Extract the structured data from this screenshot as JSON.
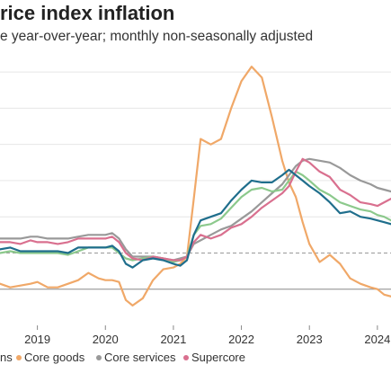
{
  "chart_data": {
    "type": "line",
    "title": "rice index inflation",
    "subtitle": "e year-over-year; monthly non-seasonally adjusted",
    "xlabel": "",
    "ylabel": "",
    "x_ticks": [
      "2019",
      "2020",
      "2021",
      "2022",
      "2023",
      "2024"
    ],
    "xlim": [
      2018.45,
      2024.2
    ],
    "ylim": [
      -2.0,
      13.0
    ],
    "reference_lines": [
      {
        "value": 2,
        "style": "dashed",
        "color": "#999999"
      },
      {
        "value": 0,
        "style": "solid",
        "color": "#888888"
      }
    ],
    "legend": {
      "placement": "bottom",
      "entries": [
        "ns",
        "Core goods",
        "Core services",
        "Supercore"
      ]
    },
    "series": [
      {
        "name": "ns",
        "color": "#1f6e8c",
        "x": [
          2018.45,
          2018.6,
          2018.75,
          2018.9,
          2019.0,
          2019.15,
          2019.3,
          2019.45,
          2019.6,
          2019.75,
          2019.9,
          2020.0,
          2020.1,
          2020.2,
          2020.3,
          2020.4,
          2020.55,
          2020.7,
          2020.85,
          2021.0,
          2021.1,
          2021.2,
          2021.3,
          2021.4,
          2021.55,
          2021.7,
          2021.85,
          2022.0,
          2022.15,
          2022.3,
          2022.45,
          2022.6,
          2022.7,
          2022.8,
          2022.9,
          2023.0,
          2023.15,
          2023.3,
          2023.45,
          2023.6,
          2023.75,
          2023.9,
          2024.0,
          2024.1,
          2024.2
        ],
        "y": [
          2.2,
          2.3,
          2.1,
          2.1,
          2.1,
          2.1,
          2.1,
          2.0,
          2.3,
          2.3,
          2.3,
          2.3,
          2.4,
          2.1,
          1.4,
          1.2,
          1.6,
          1.7,
          1.6,
          1.4,
          1.3,
          1.6,
          3.0,
          3.8,
          4.0,
          4.2,
          4.9,
          5.5,
          6.0,
          5.9,
          5.9,
          6.3,
          6.6,
          6.3,
          6.0,
          5.7,
          5.3,
          4.8,
          4.2,
          4.3,
          4.0,
          3.9,
          3.8,
          3.7,
          3.6
        ]
      },
      {
        "name": "Core goods",
        "color": "#f0a868",
        "x": [
          2018.45,
          2018.6,
          2018.75,
          2018.9,
          2019.0,
          2019.15,
          2019.3,
          2019.45,
          2019.6,
          2019.75,
          2019.9,
          2020.0,
          2020.1,
          2020.2,
          2020.3,
          2020.4,
          2020.55,
          2020.7,
          2020.85,
          2021.0,
          2021.1,
          2021.2,
          2021.3,
          2021.4,
          2021.55,
          2021.7,
          2021.85,
          2022.0,
          2022.15,
          2022.3,
          2022.45,
          2022.6,
          2022.7,
          2022.8,
          2022.9,
          2023.0,
          2023.15,
          2023.3,
          2023.45,
          2023.6,
          2023.75,
          2023.9,
          2024.0,
          2024.1,
          2024.2
        ],
        "y": [
          0.3,
          0.1,
          0.2,
          0.3,
          0.4,
          0.1,
          0.1,
          0.3,
          0.5,
          0.9,
          0.6,
          0.5,
          0.5,
          0.4,
          -0.6,
          -0.9,
          -0.5,
          0.5,
          1.1,
          1.2,
          1.4,
          1.8,
          5.0,
          8.3,
          8.0,
          8.3,
          10.0,
          11.5,
          12.3,
          11.7,
          9.5,
          7.1,
          5.9,
          5.1,
          3.7,
          2.5,
          1.5,
          1.9,
          1.4,
          0.6,
          0.3,
          0.1,
          0.0,
          -0.3,
          -0.4
        ]
      },
      {
        "name": "Core services",
        "color": "#999999",
        "x": [
          2018.45,
          2018.6,
          2018.75,
          2018.9,
          2019.0,
          2019.15,
          2019.3,
          2019.45,
          2019.6,
          2019.75,
          2019.9,
          2020.0,
          2020.1,
          2020.2,
          2020.3,
          2020.4,
          2020.55,
          2020.7,
          2020.85,
          2021.0,
          2021.1,
          2021.2,
          2021.3,
          2021.4,
          2021.55,
          2021.7,
          2021.85,
          2022.0,
          2022.15,
          2022.3,
          2022.45,
          2022.6,
          2022.7,
          2022.8,
          2022.9,
          2023.0,
          2023.15,
          2023.3,
          2023.45,
          2023.6,
          2023.75,
          2023.9,
          2024.0,
          2024.1,
          2024.2
        ],
        "y": [
          2.8,
          2.8,
          2.8,
          2.9,
          2.9,
          2.8,
          2.8,
          2.8,
          2.9,
          3.0,
          3.0,
          3.0,
          3.1,
          2.8,
          2.2,
          1.8,
          1.8,
          1.8,
          1.7,
          1.6,
          1.7,
          1.8,
          2.5,
          2.7,
          3.0,
          3.3,
          3.5,
          3.9,
          4.3,
          4.8,
          5.3,
          5.8,
          6.3,
          6.8,
          7.1,
          7.2,
          7.1,
          7.0,
          6.7,
          6.3,
          6.0,
          5.8,
          5.6,
          5.5,
          5.4
        ]
      },
      {
        "name": "Supercore",
        "color": "#d9708f",
        "x": [
          2018.45,
          2018.6,
          2018.75,
          2018.9,
          2019.0,
          2019.15,
          2019.3,
          2019.45,
          2019.6,
          2019.75,
          2019.9,
          2020.0,
          2020.1,
          2020.2,
          2020.3,
          2020.4,
          2020.55,
          2020.7,
          2020.85,
          2021.0,
          2021.1,
          2021.2,
          2021.3,
          2021.4,
          2021.55,
          2021.7,
          2021.85,
          2022.0,
          2022.15,
          2022.3,
          2022.45,
          2022.6,
          2022.7,
          2022.8,
          2022.9,
          2023.0,
          2023.15,
          2023.3,
          2023.45,
          2023.6,
          2023.75,
          2023.9,
          2024.0,
          2024.1,
          2024.2
        ],
        "y": [
          2.6,
          2.6,
          2.5,
          2.7,
          2.6,
          2.6,
          2.5,
          2.6,
          2.8,
          2.8,
          2.8,
          2.8,
          2.9,
          2.6,
          2.0,
          1.7,
          1.6,
          1.8,
          1.7,
          1.6,
          1.6,
          1.8,
          2.6,
          3.0,
          2.8,
          3.0,
          3.4,
          3.6,
          4.0,
          4.5,
          4.9,
          5.3,
          5.7,
          6.5,
          7.2,
          7.0,
          6.5,
          6.2,
          5.5,
          5.2,
          4.8,
          4.7,
          4.6,
          4.8,
          5.0
        ]
      },
      {
        "name": "",
        "color": "#8cc98c",
        "x": [
          2018.45,
          2018.6,
          2018.75,
          2018.9,
          2019.0,
          2019.15,
          2019.3,
          2019.45,
          2019.6,
          2019.75,
          2019.9,
          2020.0,
          2020.1,
          2020.2,
          2020.3,
          2020.4,
          2020.55,
          2020.7,
          2020.85,
          2021.0,
          2021.1,
          2021.2,
          2021.3,
          2021.4,
          2021.55,
          2021.7,
          2021.85,
          2022.0,
          2022.15,
          2022.3,
          2022.45,
          2022.6,
          2022.7,
          2022.8,
          2022.9,
          2023.0,
          2023.15,
          2023.3,
          2023.45,
          2023.6,
          2023.75,
          2023.9,
          2024.0,
          2024.1,
          2024.2
        ],
        "y": [
          2.0,
          2.1,
          2.0,
          2.0,
          2.0,
          2.0,
          2.0,
          1.9,
          2.1,
          2.3,
          2.3,
          2.3,
          2.3,
          2.0,
          1.7,
          1.6,
          1.7,
          1.8,
          1.7,
          1.5,
          1.6,
          1.8,
          3.0,
          3.5,
          3.6,
          3.9,
          4.5,
          5.1,
          5.5,
          5.6,
          5.4,
          5.5,
          6.0,
          6.5,
          6.3,
          6.0,
          5.5,
          5.2,
          4.8,
          4.6,
          4.4,
          4.3,
          4.1,
          4.0,
          3.8
        ]
      }
    ]
  }
}
